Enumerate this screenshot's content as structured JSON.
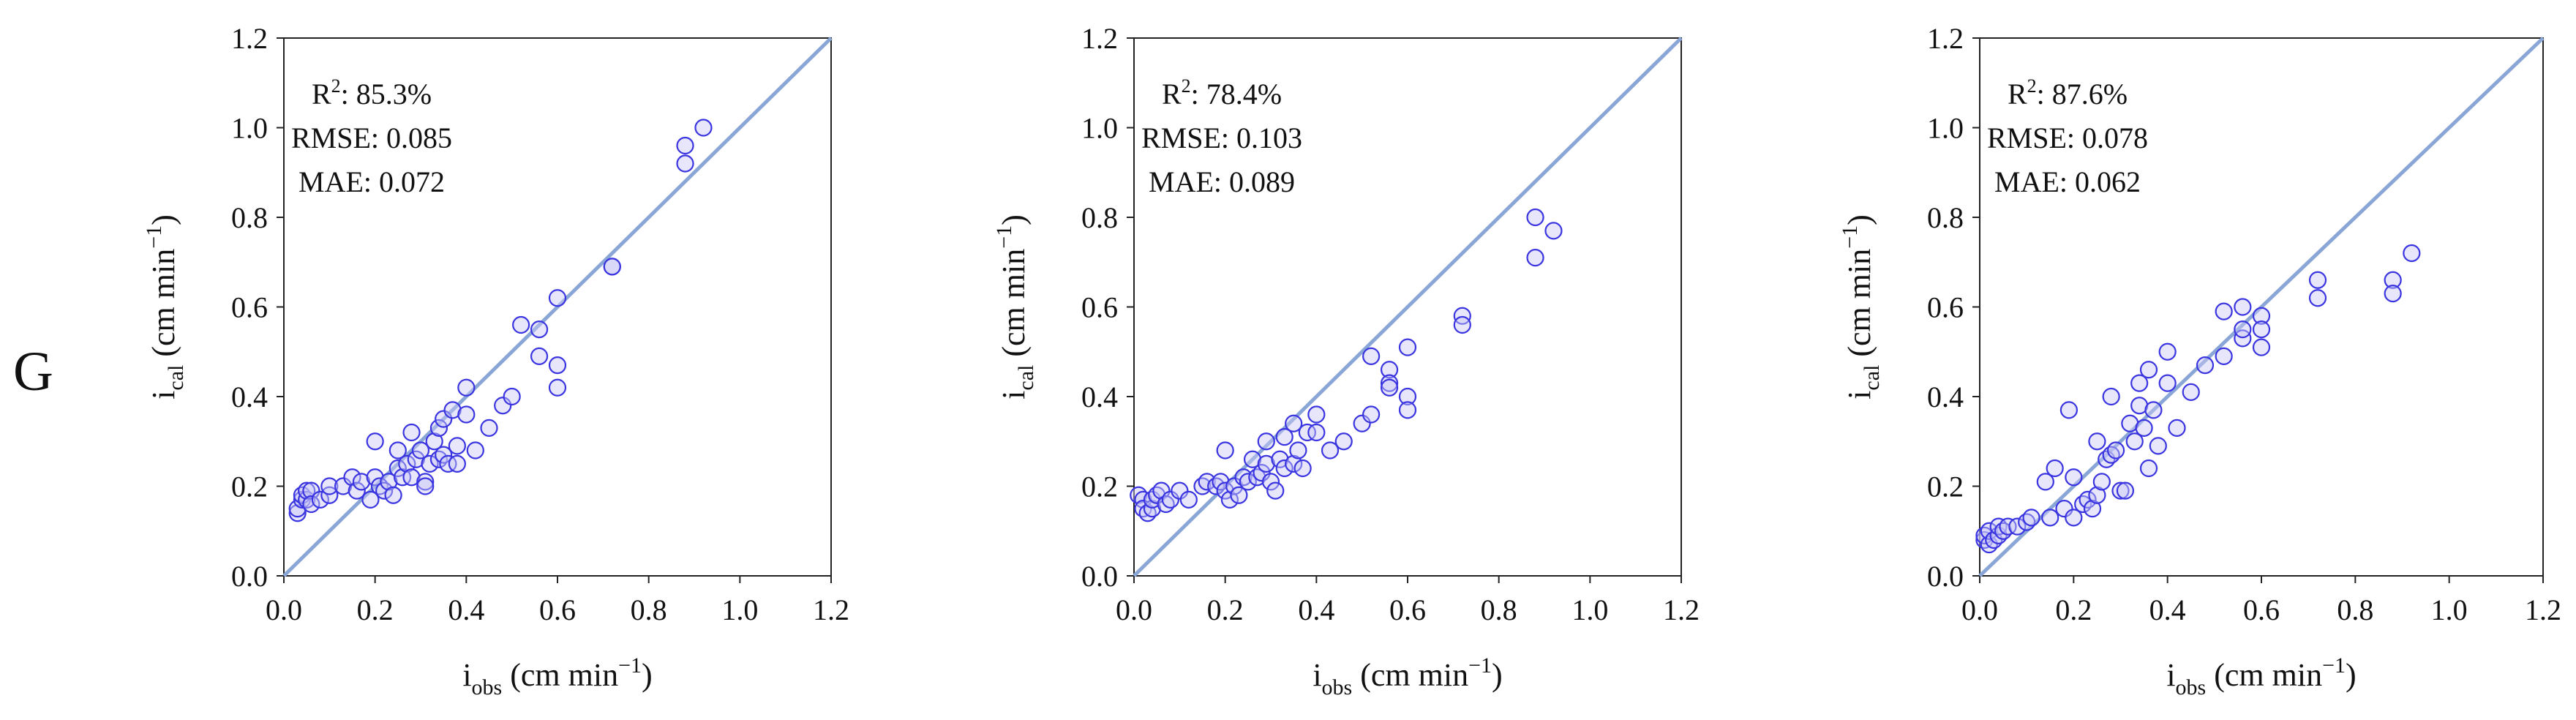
{
  "panel_label": "G",
  "chart_data": [
    {
      "type": "scatter",
      "title": "",
      "xlabel": "i",
      "xlabel_sub": "obs",
      "xlabel_unit": " (cm min",
      "xlabel_sup": "−1",
      "xlabel_close": ")",
      "ylabel": "i",
      "ylabel_sub": "cal",
      "ylabel_unit": " (cm min",
      "ylabel_sup": "−1",
      "ylabel_close": ")",
      "xlim": [
        0,
        1.2
      ],
      "ylim": [
        0,
        1.2
      ],
      "ticks": [
        "0.0",
        "0.2",
        "0.4",
        "0.6",
        "0.8",
        "1.0",
        "1.2"
      ],
      "tick_values": [
        0,
        0.2,
        0.4,
        0.6,
        0.8,
        1.0,
        1.2
      ],
      "reference_line": "1:1",
      "stats": {
        "r2_label": "R",
        "r2_sup": "2",
        "r2_value": ": 85.3%",
        "rmse": "RMSE: 0.085",
        "mae": "MAE: 0.072"
      },
      "points": [
        [
          0.03,
          0.14
        ],
        [
          0.03,
          0.15
        ],
        [
          0.04,
          0.17
        ],
        [
          0.04,
          0.18
        ],
        [
          0.05,
          0.17
        ],
        [
          0.05,
          0.19
        ],
        [
          0.06,
          0.19
        ],
        [
          0.06,
          0.16
        ],
        [
          0.08,
          0.17
        ],
        [
          0.1,
          0.18
        ],
        [
          0.1,
          0.2
        ],
        [
          0.13,
          0.2
        ],
        [
          0.15,
          0.22
        ],
        [
          0.16,
          0.19
        ],
        [
          0.17,
          0.21
        ],
        [
          0.19,
          0.17
        ],
        [
          0.2,
          0.3
        ],
        [
          0.2,
          0.22
        ],
        [
          0.21,
          0.2
        ],
        [
          0.22,
          0.19
        ],
        [
          0.23,
          0.21
        ],
        [
          0.24,
          0.18
        ],
        [
          0.25,
          0.28
        ],
        [
          0.25,
          0.24
        ],
        [
          0.26,
          0.22
        ],
        [
          0.27,
          0.25
        ],
        [
          0.28,
          0.32
        ],
        [
          0.28,
          0.22
        ],
        [
          0.29,
          0.26
        ],
        [
          0.3,
          0.28
        ],
        [
          0.31,
          0.21
        ],
        [
          0.31,
          0.2
        ],
        [
          0.32,
          0.25
        ],
        [
          0.33,
          0.3
        ],
        [
          0.34,
          0.33
        ],
        [
          0.34,
          0.26
        ],
        [
          0.35,
          0.35
        ],
        [
          0.35,
          0.27
        ],
        [
          0.36,
          0.25
        ],
        [
          0.37,
          0.37
        ],
        [
          0.38,
          0.29
        ],
        [
          0.38,
          0.25
        ],
        [
          0.4,
          0.42
        ],
        [
          0.4,
          0.36
        ],
        [
          0.42,
          0.28
        ],
        [
          0.45,
          0.33
        ],
        [
          0.48,
          0.38
        ],
        [
          0.5,
          0.4
        ],
        [
          0.52,
          0.56
        ],
        [
          0.56,
          0.55
        ],
        [
          0.56,
          0.49
        ],
        [
          0.6,
          0.62
        ],
        [
          0.6,
          0.47
        ],
        [
          0.6,
          0.42
        ],
        [
          0.72,
          0.69
        ],
        [
          0.72,
          0.69
        ],
        [
          0.88,
          0.96
        ],
        [
          0.88,
          0.92
        ],
        [
          0.92,
          1.0
        ]
      ]
    },
    {
      "type": "scatter",
      "title": "",
      "xlabel": "i",
      "xlabel_sub": "obs",
      "xlabel_unit": " (cm min",
      "xlabel_sup": "−1",
      "xlabel_close": ")",
      "ylabel": "i",
      "ylabel_sub": "cal",
      "ylabel_unit": " (cm min",
      "ylabel_sup": "−1",
      "ylabel_close": ")",
      "xlim": [
        0,
        1.2
      ],
      "ylim": [
        0,
        1.2
      ],
      "ticks": [
        "0.0",
        "0.2",
        "0.4",
        "0.6",
        "0.8",
        "1.0",
        "1.2"
      ],
      "tick_values": [
        0,
        0.2,
        0.4,
        0.6,
        0.8,
        1.0,
        1.2
      ],
      "reference_line": "1:1",
      "stats": {
        "r2_label": "R",
        "r2_sup": "2",
        "r2_value": ": 78.4%",
        "rmse": "RMSE: 0.103",
        "mae": "MAE: 0.089"
      },
      "points": [
        [
          0.01,
          0.18
        ],
        [
          0.02,
          0.17
        ],
        [
          0.02,
          0.15
        ],
        [
          0.03,
          0.14
        ],
        [
          0.04,
          0.15
        ],
        [
          0.04,
          0.17
        ],
        [
          0.05,
          0.18
        ],
        [
          0.06,
          0.19
        ],
        [
          0.07,
          0.16
        ],
        [
          0.08,
          0.17
        ],
        [
          0.1,
          0.19
        ],
        [
          0.12,
          0.17
        ],
        [
          0.15,
          0.2
        ],
        [
          0.16,
          0.21
        ],
        [
          0.18,
          0.2
        ],
        [
          0.19,
          0.21
        ],
        [
          0.2,
          0.28
        ],
        [
          0.2,
          0.19
        ],
        [
          0.21,
          0.17
        ],
        [
          0.22,
          0.2
        ],
        [
          0.23,
          0.18
        ],
        [
          0.24,
          0.22
        ],
        [
          0.25,
          0.21
        ],
        [
          0.26,
          0.26
        ],
        [
          0.27,
          0.22
        ],
        [
          0.28,
          0.23
        ],
        [
          0.29,
          0.3
        ],
        [
          0.29,
          0.25
        ],
        [
          0.3,
          0.21
        ],
        [
          0.31,
          0.19
        ],
        [
          0.32,
          0.26
        ],
        [
          0.33,
          0.31
        ],
        [
          0.33,
          0.24
        ],
        [
          0.35,
          0.34
        ],
        [
          0.35,
          0.25
        ],
        [
          0.36,
          0.28
        ],
        [
          0.37,
          0.24
        ],
        [
          0.38,
          0.32
        ],
        [
          0.4,
          0.36
        ],
        [
          0.4,
          0.32
        ],
        [
          0.43,
          0.28
        ],
        [
          0.46,
          0.3
        ],
        [
          0.5,
          0.34
        ],
        [
          0.52,
          0.49
        ],
        [
          0.52,
          0.36
        ],
        [
          0.56,
          0.46
        ],
        [
          0.56,
          0.43
        ],
        [
          0.56,
          0.42
        ],
        [
          0.6,
          0.51
        ],
        [
          0.6,
          0.4
        ],
        [
          0.6,
          0.37
        ],
        [
          0.72,
          0.58
        ],
        [
          0.72,
          0.56
        ],
        [
          0.88,
          0.8
        ],
        [
          0.88,
          0.71
        ],
        [
          0.92,
          0.77
        ]
      ]
    },
    {
      "type": "scatter",
      "title": "",
      "xlabel": "i",
      "xlabel_sub": "obs",
      "xlabel_unit": " (cm min",
      "xlabel_sup": "−1",
      "xlabel_close": ")",
      "ylabel": "i",
      "ylabel_sub": "cal",
      "ylabel_unit": " (cm min",
      "ylabel_sup": "−1",
      "ylabel_close": ")",
      "xlim": [
        0,
        1.2
      ],
      "ylim": [
        0,
        1.2
      ],
      "ticks": [
        "0.0",
        "0.2",
        "0.4",
        "0.6",
        "0.8",
        "1.0",
        "1.2"
      ],
      "tick_values": [
        0,
        0.2,
        0.4,
        0.6,
        0.8,
        1.0,
        1.2
      ],
      "reference_line": "1:1",
      "stats": {
        "r2_label": "R",
        "r2_sup": "2",
        "r2_value": ": 87.6%",
        "rmse": "RMSE: 0.078",
        "mae": "MAE: 0.062"
      },
      "points": [
        [
          0.01,
          0.08
        ],
        [
          0.01,
          0.09
        ],
        [
          0.02,
          0.07
        ],
        [
          0.02,
          0.1
        ],
        [
          0.03,
          0.08
        ],
        [
          0.04,
          0.09
        ],
        [
          0.04,
          0.11
        ],
        [
          0.05,
          0.1
        ],
        [
          0.06,
          0.11
        ],
        [
          0.08,
          0.11
        ],
        [
          0.1,
          0.12
        ],
        [
          0.11,
          0.13
        ],
        [
          0.14,
          0.21
        ],
        [
          0.15,
          0.13
        ],
        [
          0.16,
          0.24
        ],
        [
          0.18,
          0.15
        ],
        [
          0.19,
          0.37
        ],
        [
          0.2,
          0.13
        ],
        [
          0.2,
          0.22
        ],
        [
          0.22,
          0.16
        ],
        [
          0.23,
          0.17
        ],
        [
          0.24,
          0.15
        ],
        [
          0.25,
          0.3
        ],
        [
          0.25,
          0.18
        ],
        [
          0.26,
          0.21
        ],
        [
          0.27,
          0.26
        ],
        [
          0.28,
          0.4
        ],
        [
          0.28,
          0.27
        ],
        [
          0.29,
          0.28
        ],
        [
          0.3,
          0.19
        ],
        [
          0.31,
          0.19
        ],
        [
          0.32,
          0.34
        ],
        [
          0.33,
          0.3
        ],
        [
          0.34,
          0.43
        ],
        [
          0.34,
          0.38
        ],
        [
          0.35,
          0.33
        ],
        [
          0.36,
          0.46
        ],
        [
          0.36,
          0.24
        ],
        [
          0.37,
          0.37
        ],
        [
          0.38,
          0.29
        ],
        [
          0.4,
          0.5
        ],
        [
          0.4,
          0.43
        ],
        [
          0.42,
          0.33
        ],
        [
          0.45,
          0.41
        ],
        [
          0.48,
          0.47
        ],
        [
          0.52,
          0.59
        ],
        [
          0.52,
          0.49
        ],
        [
          0.56,
          0.6
        ],
        [
          0.56,
          0.53
        ],
        [
          0.56,
          0.55
        ],
        [
          0.6,
          0.58
        ],
        [
          0.6,
          0.55
        ],
        [
          0.6,
          0.51
        ],
        [
          0.72,
          0.66
        ],
        [
          0.72,
          0.62
        ],
        [
          0.88,
          0.66
        ],
        [
          0.88,
          0.63
        ],
        [
          0.92,
          0.72
        ]
      ]
    }
  ],
  "colors": {
    "marker": "#3a35e0",
    "marker_fill": "#c9c8f7",
    "reference_line": "#8aa6d6",
    "axis": "#222222"
  }
}
